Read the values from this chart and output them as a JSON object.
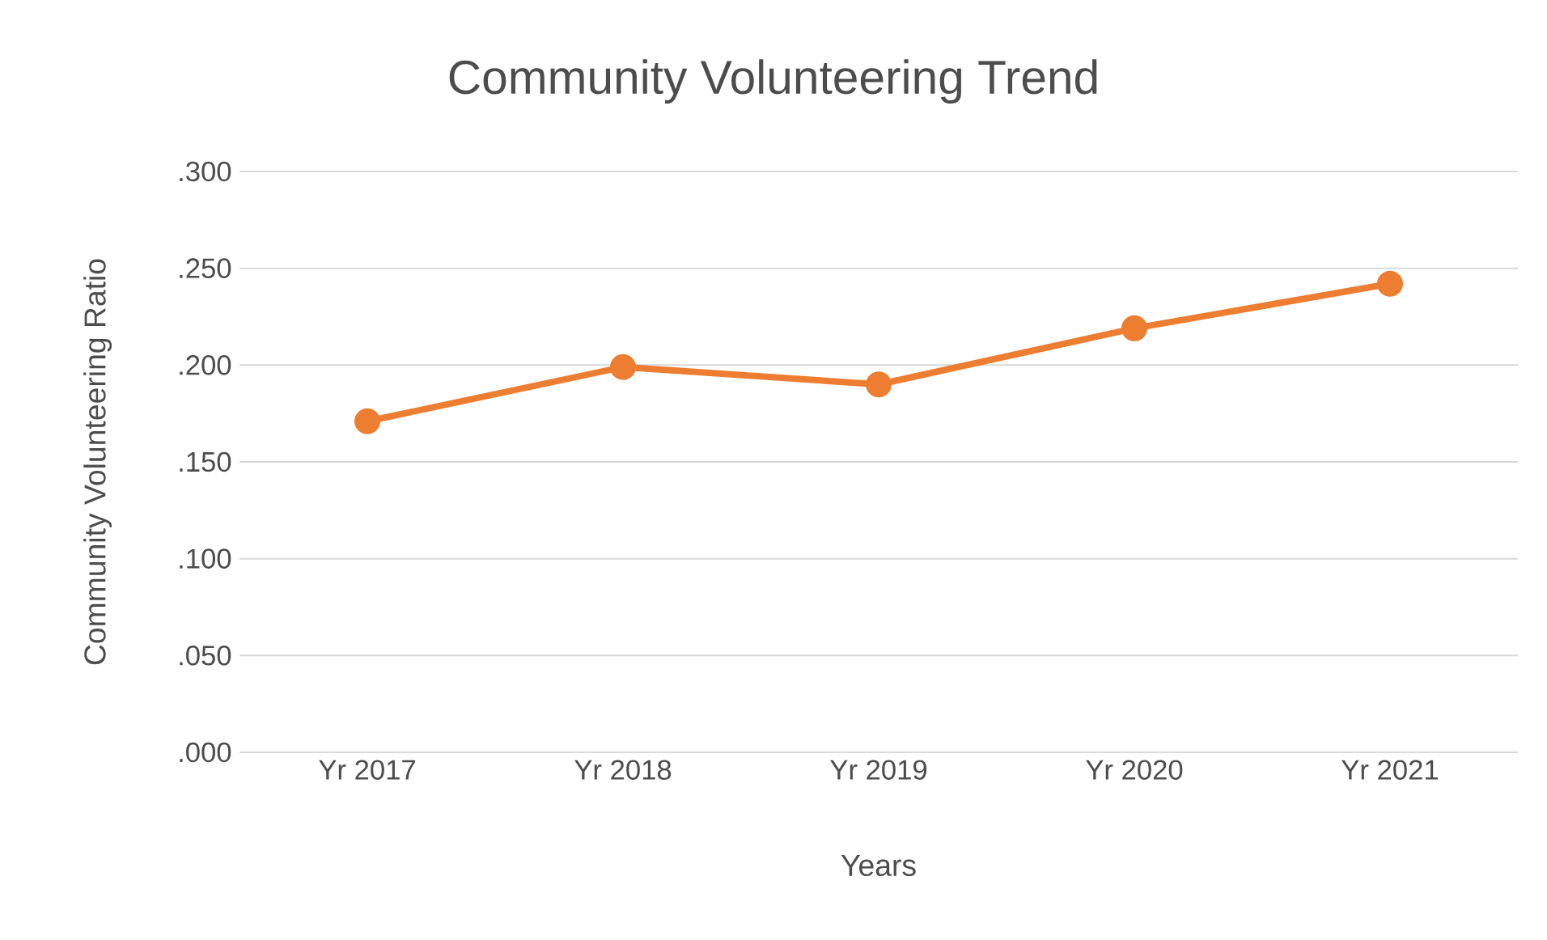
{
  "chart_data": {
    "type": "line",
    "title": "Community Volunteering Trend",
    "xlabel": "Years",
    "ylabel": "Community Volunteering Ratio",
    "categories": [
      "Yr 2017",
      "Yr 2018",
      "Yr 2019",
      "Yr 2020",
      "Yr 2021"
    ],
    "series": [
      {
        "color": "#ed7d31",
        "values": [
          0.171,
          0.199,
          0.19,
          0.219,
          0.242
        ]
      }
    ],
    "ylim": [
      0,
      0.3
    ],
    "yticks": [
      {
        "value": 0,
        "label": ".000"
      },
      {
        "value": 0.05,
        "label": ".050"
      },
      {
        "value": 0.1,
        "label": ".100"
      },
      {
        "value": 0.15,
        "label": ".150"
      },
      {
        "value": 0.2,
        "label": ".200"
      },
      {
        "value": 0.25,
        "label": ".250"
      },
      {
        "value": 0.3,
        "label": ".300"
      }
    ],
    "grid": "y",
    "marker": "circle",
    "line_style": "solid"
  }
}
